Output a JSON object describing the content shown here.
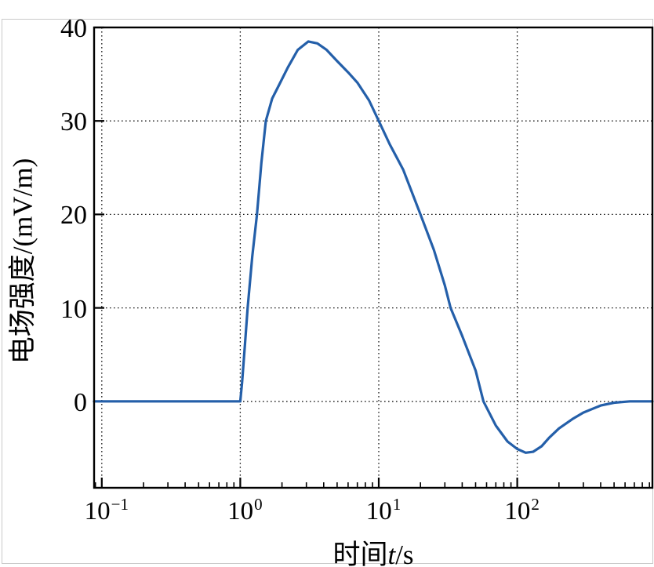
{
  "axes": {
    "y": {
      "title": "电场强度/(mV/m)",
      "tick_values": [
        40,
        30,
        20,
        10,
        0
      ]
    },
    "x": {
      "title_prefix": "时间",
      "title_var": "t",
      "title_suffix": "/s",
      "tick_base": "10",
      "tick_exponents": [
        "−1",
        "0",
        "1",
        "2"
      ]
    }
  },
  "colors": {
    "line": "#245fa9",
    "axis": "#000000",
    "grid": "#1a1a1a",
    "text": "#000000",
    "frame": "#c9c9c9",
    "background": "#ffffff"
  },
  "chart_data": {
    "type": "line",
    "title": "",
    "xlabel": "时间t/s",
    "ylabel": "电场强度/(mV/m)",
    "x_scale": "log",
    "xlim": [
      0.088,
      946
    ],
    "ylim": [
      -9.25,
      40
    ],
    "x_major_ticks": [
      0.1,
      1,
      10,
      100
    ],
    "y_ticks": [
      0,
      10,
      20,
      30,
      40
    ],
    "grid": {
      "style": "dotted",
      "x_at": [
        0.1,
        1,
        10,
        100
      ],
      "y_at": [
        0,
        10,
        20,
        30
      ]
    },
    "legend_shown": false,
    "description": "Electric field strength vs time: zero until t=1 s, steep rise to a peak of about 38.5 mV/m near t=3 s, smooth decay crossing zero near t=57 s, undershoot to about -5.5 mV/m near t=115 s, returning to zero by about t=500 s",
    "series": [
      {
        "name": "电场强度",
        "color": "#245fa9",
        "x": [
          0.088,
          0.3,
          0.6,
          1.0,
          1.03,
          1.08,
          1.13,
          1.22,
          1.32,
          1.42,
          1.53,
          1.7,
          1.9,
          2.2,
          2.6,
          3.1,
          3.6,
          4.2,
          5.0,
          6.0,
          7.0,
          8.5,
          10,
          12,
          15,
          20,
          25,
          30,
          33,
          40,
          50,
          57,
          70,
          85,
          100,
          115,
          130,
          150,
          170,
          200,
          250,
          300,
          400,
          500,
          650,
          946
        ],
        "y": [
          0,
          0,
          0,
          0,
          2,
          6,
          10,
          15.5,
          20,
          25.5,
          30,
          32.4,
          33.8,
          35.7,
          37.6,
          38.5,
          38.3,
          37.6,
          36.4,
          35.2,
          34.1,
          32.2,
          30,
          27.5,
          24.8,
          20,
          16.2,
          12.4,
          10,
          7.0,
          3.3,
          0,
          -2.6,
          -4.3,
          -5.1,
          -5.5,
          -5.4,
          -4.8,
          -3.9,
          -2.9,
          -1.9,
          -1.2,
          -0.45,
          -0.15,
          0,
          0
        ]
      }
    ]
  }
}
